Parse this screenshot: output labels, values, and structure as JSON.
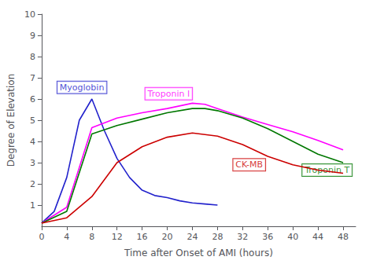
{
  "chart_data": {
    "type": "line",
    "xlabel": "Time after Onset of AMI (hours)",
    "ylabel": "Degree of Elevation",
    "xlim": [
      0,
      50
    ],
    "ylim": [
      0,
      10
    ],
    "xticks": [
      0,
      4,
      8,
      12,
      16,
      20,
      24,
      28,
      32,
      36,
      40,
      44,
      48
    ],
    "yticks": [
      1,
      2,
      3,
      4,
      5,
      6,
      7,
      8,
      9,
      10
    ],
    "grid": false,
    "series": [
      {
        "color": "#2222CC",
        "x": [
          0,
          2,
          4,
          6,
          8,
          10,
          12,
          14,
          16,
          18,
          20,
          22,
          24,
          26,
          28
        ],
        "values": [
          0.15,
          0.7,
          2.3,
          5.0,
          6.0,
          4.5,
          3.2,
          2.3,
          1.7,
          1.45,
          1.35,
          1.2,
          1.1,
          1.05,
          1.0
        ]
      },
      {
        "color": "#FF00FF",
        "x": [
          0,
          4,
          8,
          12,
          16,
          20,
          24,
          26,
          28,
          32,
          36,
          40,
          44,
          48
        ],
        "values": [
          0.15,
          0.9,
          4.65,
          5.1,
          5.35,
          5.55,
          5.8,
          5.75,
          5.55,
          5.15,
          4.8,
          4.45,
          4.05,
          3.6
        ]
      },
      {
        "color": "#007700",
        "x": [
          0,
          4,
          8,
          12,
          16,
          20,
          24,
          26,
          28,
          32,
          36,
          40,
          44,
          48
        ],
        "values": [
          0.15,
          0.7,
          4.35,
          4.75,
          5.05,
          5.35,
          5.55,
          5.55,
          5.45,
          5.1,
          4.6,
          4.0,
          3.4,
          3.0
        ]
      },
      {
        "color": "#CC0000",
        "x": [
          0,
          4,
          8,
          12,
          16,
          20,
          24,
          28,
          32,
          36,
          40,
          44,
          48
        ],
        "values": [
          0.15,
          0.4,
          1.4,
          3.0,
          3.75,
          4.2,
          4.4,
          4.25,
          3.85,
          3.3,
          2.9,
          2.65,
          2.5
        ]
      }
    ],
    "annotations": [
      {
        "text": "Myoglobin",
        "x": 2.5,
        "y": 6.55,
        "color": "#2222CC"
      },
      {
        "text": "Troponin I",
        "x": 16.5,
        "y": 6.25,
        "color": "#FF00FF"
      },
      {
        "text": "CK-MB",
        "x": 30.5,
        "y": 2.9,
        "color": "#CC0000"
      },
      {
        "text": "Troponin T",
        "x": 41.5,
        "y": 2.65,
        "color": "#007700"
      }
    ]
  }
}
